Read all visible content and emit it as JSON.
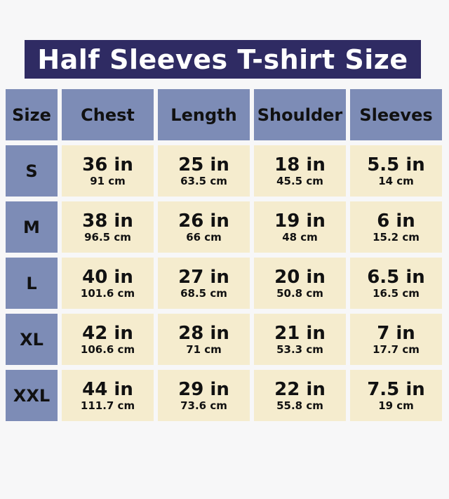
{
  "title": "Half Sleeves T-shirt Size",
  "colors": {
    "title_bg": "#2f2b63",
    "header_bg": "#7d8cb6",
    "cell_bg": "#f5ecce"
  },
  "headers": [
    "Size",
    "Chest",
    "Length",
    "Shoulder",
    "Sleeves"
  ],
  "rows": [
    {
      "size": "S",
      "values": [
        {
          "in": "36 in",
          "cm": "91 cm"
        },
        {
          "in": "25 in",
          "cm": "63.5 cm"
        },
        {
          "in": "18 in",
          "cm": "45.5 cm"
        },
        {
          "in": "5.5 in",
          "cm": "14 cm"
        }
      ]
    },
    {
      "size": "M",
      "values": [
        {
          "in": "38 in",
          "cm": "96.5 cm"
        },
        {
          "in": "26 in",
          "cm": "66 cm"
        },
        {
          "in": "19 in",
          "cm": "48 cm"
        },
        {
          "in": "6 in",
          "cm": "15.2 cm"
        }
      ]
    },
    {
      "size": "L",
      "values": [
        {
          "in": "40 in",
          "cm": "101.6 cm"
        },
        {
          "in": "27 in",
          "cm": "68.5 cm"
        },
        {
          "in": "20 in",
          "cm": "50.8 cm"
        },
        {
          "in": "6.5 in",
          "cm": "16.5 cm"
        }
      ]
    },
    {
      "size": "XL",
      "values": [
        {
          "in": "42 in",
          "cm": "106.6 cm"
        },
        {
          "in": "28 in",
          "cm": "71 cm"
        },
        {
          "in": "21 in",
          "cm": "53.3 cm"
        },
        {
          "in": "7 in",
          "cm": "17.7 cm"
        }
      ]
    },
    {
      "size": "XXL",
      "values": [
        {
          "in": "44 in",
          "cm": "111.7 cm"
        },
        {
          "in": "29 in",
          "cm": "73.6 cm"
        },
        {
          "in": "22 in",
          "cm": "55.8 cm"
        },
        {
          "in": "7.5 in",
          "cm": "19 cm"
        }
      ]
    }
  ]
}
